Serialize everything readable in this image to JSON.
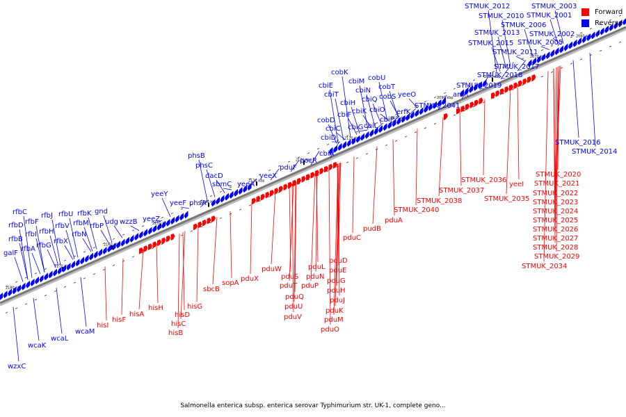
{
  "caption": "Salmonella enterica subsp. enterica serovar Typhimurium str. UK-1, complete geno...",
  "legend": [
    {
      "label": "Forward",
      "color": "#ff0000"
    },
    {
      "label": "Reverse",
      "color": "#0000ff"
    }
  ],
  "colors": {
    "forward": "#ff0000",
    "reverse": "#0000ff",
    "backbone": "#777777",
    "tick": "#000000"
  },
  "ruler": [
    "2060 kbp",
    "2070 kbp",
    "2080 kbp",
    "2090 kbp",
    "2100 kbp",
    "2110 kbp",
    "2120 kbp",
    "2130 kbp",
    "2140 kbp",
    "2150 kbp",
    "2160 kbp",
    "2170 kbp",
    "2180 kbp"
  ],
  "reverse_genes": [
    "wzxC",
    "wcaK",
    "wcaL",
    "wcaM",
    "galF",
    "rfbB",
    "rfbD",
    "rfbA",
    "rfbC",
    "rfbI",
    "rfbF",
    "rfbG",
    "rfbJ",
    "rfbH",
    "rfbX",
    "rfbV",
    "rfbU",
    "rfbN",
    "rfbM",
    "rfbK",
    "rfbP",
    "gnd",
    "udg",
    "wzzB",
    "yeeZ",
    "yeeY",
    "yeeF",
    "phsA",
    "phsB",
    "phsC",
    "dacD",
    "sbmC",
    "yeeA",
    "yeeX",
    "pduF",
    "pocR",
    "cbiA",
    "cobD",
    "cbiC",
    "cbiD",
    "cbiF",
    "cbiG",
    "cbiE",
    "cbiT",
    "cbiH",
    "cbiK",
    "cbiL",
    "cbiN",
    "cbiM",
    "cobK",
    "cbiQ",
    "cbiO",
    "cbiP",
    "cobU",
    "cobS",
    "cobT",
    "erfK",
    "yeeO",
    "STMUK_2041",
    "amn",
    "STMUK_2019",
    "STMUK_2018",
    "STMUK_2017",
    "STMUK_2011",
    "STMUK_2015",
    "STMUK_2013",
    "STMUK_2010",
    "STMUK_2012",
    "STMUK_2006",
    "STMUK_2005",
    "STMUK_2002",
    "STMUK_2003",
    "STMUK_2001",
    "STMUK_2016",
    "STMUK_2014"
  ],
  "forward_genes": [
    "hisI",
    "hisF",
    "hisA",
    "hisH",
    "hisB",
    "hisC",
    "hisD",
    "hisG",
    "sbcB",
    "sopA",
    "pduX",
    "pduW",
    "pduV",
    "pduU",
    "pduT",
    "pduS",
    "pduQ",
    "pduP",
    "pduL",
    "pduN",
    "pduK",
    "pduJ",
    "pduH",
    "pduG",
    "pduE",
    "pduD",
    "pduM",
    "pduO",
    "pduC",
    "pudB",
    "pduA",
    "STMUK_2040",
    "STMUK_2038",
    "STMUK_2037",
    "STMUK_2036",
    "STMUK_2035",
    "yeeI",
    "STMUK_2020",
    "STMUK_2021",
    "STMUK_2022",
    "STMUK_2023",
    "STMUK_2024",
    "STMUK_2025",
    "STMUK_2026",
    "STMUK_2027",
    "STMUK_2028",
    "STMUK_2029",
    "STMUK_2034"
  ]
}
